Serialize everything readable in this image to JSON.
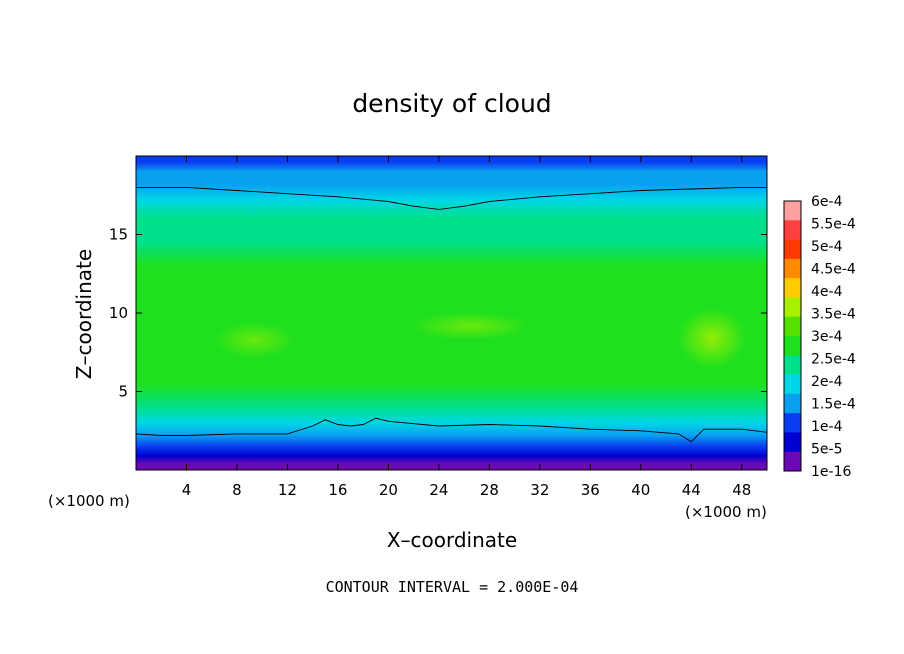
{
  "chart_data": {
    "type": "heatmap",
    "title": "density of cloud",
    "xlabel": "X–coordinate",
    "ylabel": "Z–coordinate",
    "x_unit": "(×1000 m)",
    "z_unit": "(×1000 m)",
    "xlim": [
      0,
      50
    ],
    "ylim": [
      0,
      20
    ],
    "x_ticks": [
      4,
      8,
      12,
      16,
      20,
      24,
      28,
      32,
      36,
      40,
      44,
      48
    ],
    "y_ticks": [
      5,
      10,
      15
    ],
    "colorbar": {
      "labels": [
        "6e-4",
        "5.5e-4",
        "5e-4",
        "4.5e-4",
        "4e-4",
        "3.5e-4",
        "3e-4",
        "2.5e-4",
        "2e-4",
        "1.5e-4",
        "1e-4",
        "5e-5",
        "1e-16"
      ],
      "colors": [
        "#ff9fa0",
        "#ff4040",
        "#ff3a00",
        "#ff8c00",
        "#ffcc00",
        "#a8f000",
        "#55e000",
        "#1ee01e",
        "#00e08a",
        "#00d6e6",
        "#0aa0f0",
        "#0a3cf0",
        "#0000d0",
        "#6a0ab4"
      ]
    },
    "contour_interval_text": "CONTOUR INTERVAL = 2.000E-04",
    "profile": {
      "z": [
        0,
        0.4,
        0.9,
        1.5,
        2.2,
        3.0,
        4.0,
        5.5,
        7.0,
        8.5,
        10.0,
        11.5,
        13.0,
        14.5,
        16.0,
        17.2,
        18.2,
        19.0,
        19.6,
        20
      ],
      "density": [
        0.0,
        3e-05,
        7e-05,
        0.00012,
        0.00017,
        0.00023,
        0.00028,
        0.00031,
        0.00033,
        0.00034,
        0.00034,
        0.000325,
        0.00031,
        0.00029,
        0.00025,
        0.00021,
        0.00018,
        0.00015,
        0.00012,
        0.0001
      ]
    },
    "contour_lines": [
      {
        "x": [
          0,
          2,
          4,
          8,
          12,
          14,
          15,
          16,
          17,
          18,
          19,
          20,
          24,
          28,
          32,
          36,
          40,
          43,
          44,
          45,
          48,
          50
        ],
        "z": [
          2.3,
          2.2,
          2.2,
          2.3,
          2.3,
          2.8,
          3.2,
          2.9,
          2.8,
          2.9,
          3.3,
          3.1,
          2.8,
          2.9,
          2.8,
          2.6,
          2.5,
          2.3,
          1.8,
          2.6,
          2.6,
          2.4
        ]
      },
      {
        "x": [
          0,
          4,
          8,
          12,
          16,
          20,
          22,
          24,
          26,
          28,
          32,
          36,
          40,
          44,
          48,
          50
        ],
        "z": [
          18.0,
          18.0,
          17.8,
          17.6,
          17.4,
          17.1,
          16.8,
          16.6,
          16.8,
          17.1,
          17.4,
          17.6,
          17.8,
          17.9,
          18.0,
          18.0
        ]
      }
    ]
  }
}
